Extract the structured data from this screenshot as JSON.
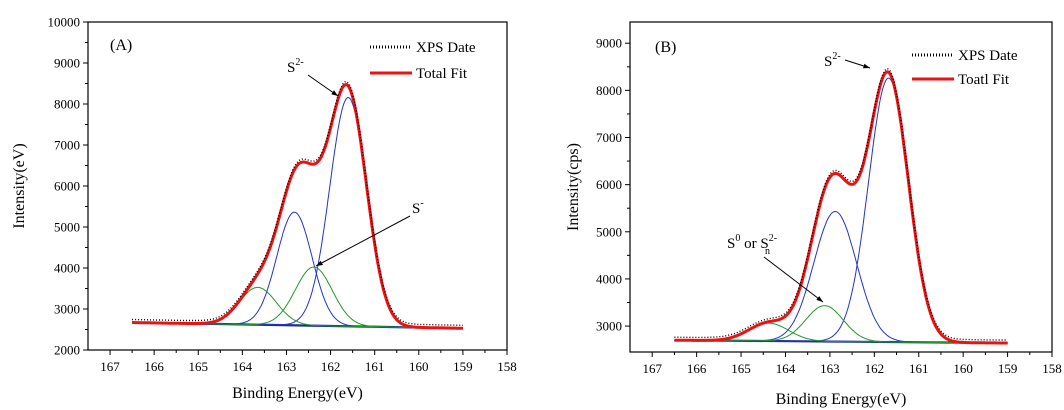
{
  "chart_data": [
    {
      "type": "line",
      "panel_label": "(A)",
      "xlabel": "Binding Energy(eV)",
      "ylabel": "Intensity(eV)",
      "xlim": [
        167.5,
        158
      ],
      "ylim": [
        2000,
        10000
      ],
      "x_reversed": true,
      "x_ticks": [
        167,
        166,
        165,
        164,
        163,
        162,
        161,
        160,
        159,
        158
      ],
      "y_ticks": [
        2000,
        3000,
        4000,
        5000,
        6000,
        7000,
        8000,
        9000,
        10000
      ],
      "legend_position": "top-right",
      "legend": [
        {
          "label": "XPS Date",
          "style": "dotted",
          "color": "#000000"
        },
        {
          "label": "Total Fit",
          "style": "solid",
          "color": "#ee1111"
        }
      ],
      "annotations": [
        {
          "label": "S",
          "sup": "2-",
          "x": 162.3,
          "y": 8850
        },
        {
          "label": "S",
          "sup": "-",
          "x": 162.4,
          "y": 4150
        }
      ],
      "baseline": {
        "x": [
          166.5,
          159
        ],
        "y": [
          2670,
          2530
        ]
      },
      "components": [
        {
          "color": "#2233cc",
          "center": 161.6,
          "height": 5580,
          "sigma": 0.42
        },
        {
          "color": "#2233cc",
          "center": 162.82,
          "height": 2760,
          "sigma": 0.4
        },
        {
          "color": "#229922",
          "center": 162.38,
          "height": 1430,
          "sigma": 0.42
        },
        {
          "color": "#229922",
          "center": 163.65,
          "height": 910,
          "sigma": 0.42
        }
      ],
      "x_range": [
        166.5,
        159
      ]
    },
    {
      "type": "line",
      "panel_label": "(B)",
      "xlabel": "Binding Energy(eV)",
      "ylabel": "Intensity(cps)",
      "xlim": [
        167.5,
        158
      ],
      "ylim": [
        2450,
        9450
      ],
      "x_reversed": true,
      "x_ticks": [
        167,
        166,
        165,
        164,
        163,
        162,
        161,
        160,
        159,
        158
      ],
      "y_ticks": [
        3000,
        4000,
        5000,
        6000,
        7000,
        8000,
        9000
      ],
      "legend_position": "top-right",
      "legend": [
        {
          "label": "XPS Date",
          "style": "dotted",
          "color": "#000000"
        },
        {
          "label": "Toatl Fit",
          "style": "solid",
          "color": "#ee1111"
        }
      ],
      "annotations": [
        {
          "label": "S",
          "sup": "2-",
          "x": 162.2,
          "y": 8750
        },
        {
          "label": "S",
          "sup": "0",
          "label2": " or S",
          "sup2": "2-",
          "sub2": "n",
          "x": 164.4,
          "y": 3950
        }
      ],
      "baseline": {
        "x": [
          166.5,
          159
        ],
        "y": [
          2700,
          2640
        ]
      },
      "components": [
        {
          "color": "#2233cc",
          "center": 161.68,
          "height": 5600,
          "sigma": 0.45
        },
        {
          "color": "#2233cc",
          "center": 162.88,
          "height": 2760,
          "sigma": 0.48
        },
        {
          "color": "#229922",
          "center": 163.12,
          "height": 760,
          "sigma": 0.42
        },
        {
          "color": "#229922",
          "center": 164.38,
          "height": 380,
          "sigma": 0.45
        }
      ],
      "x_range": [
        166.5,
        159
      ]
    }
  ]
}
